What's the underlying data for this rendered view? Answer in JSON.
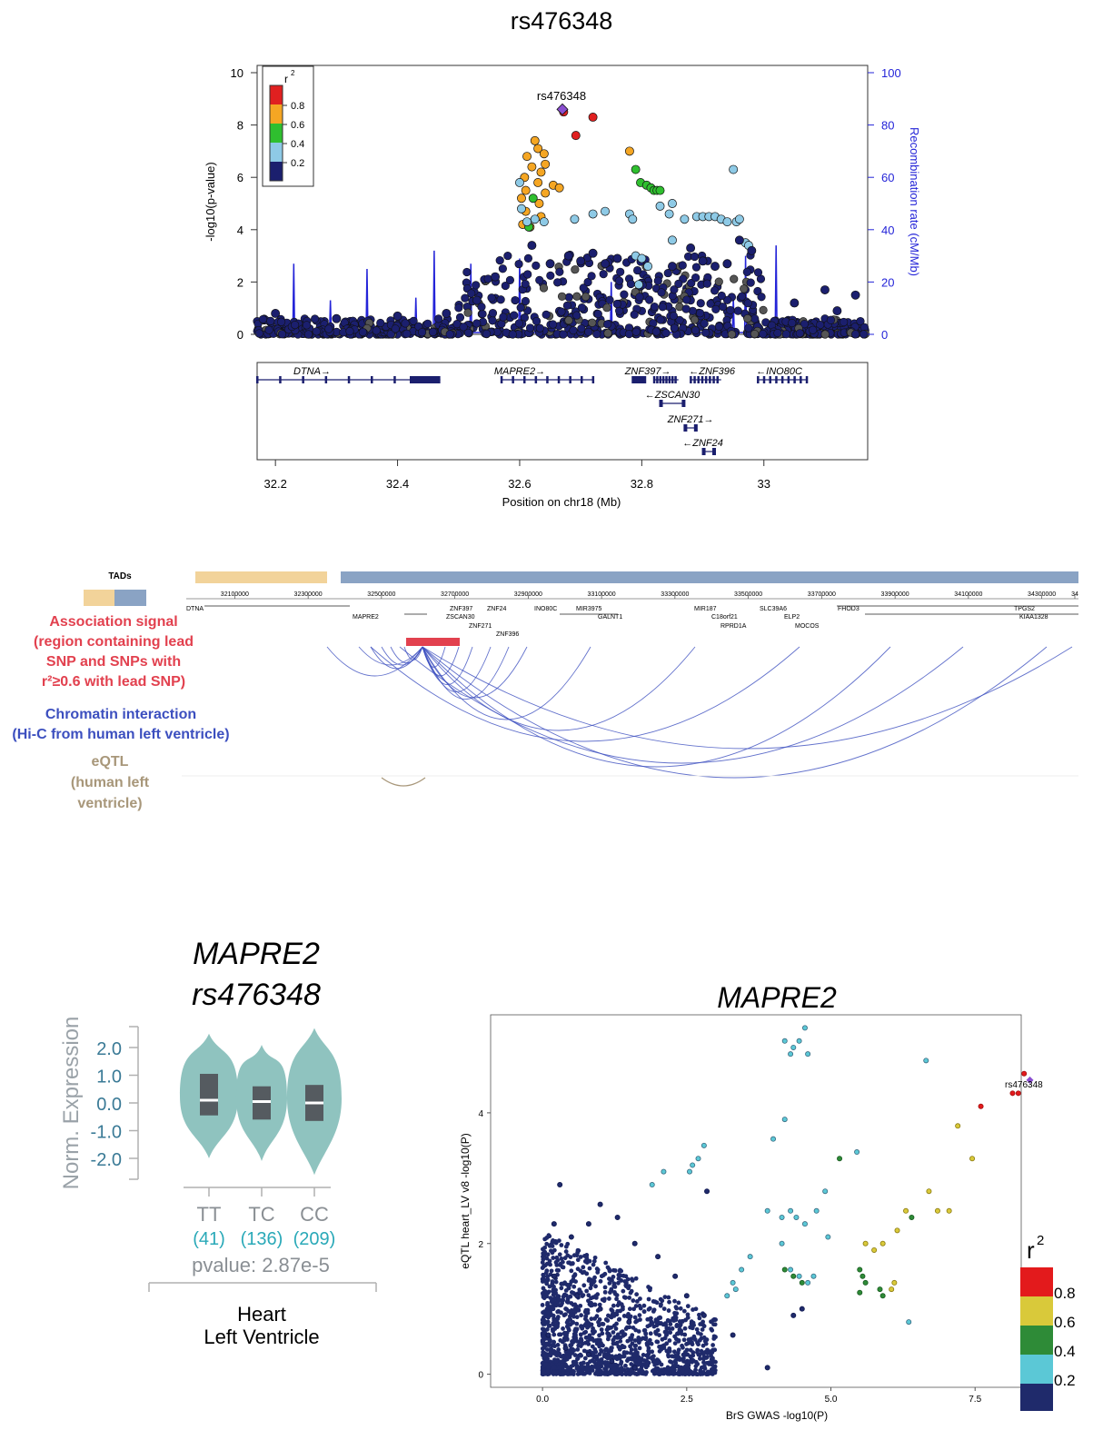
{
  "colors": {
    "navy": "#1b1f6e",
    "light_blue": "#8ecae6",
    "green": "#2fbf2f",
    "orange": "#f5a623",
    "red": "#e02020",
    "purple": "#8a4fd0",
    "recomb_blue": "#2424d8",
    "tad_tan": "#f2d39a",
    "tad_blue": "#8aa3c4",
    "assoc_red": "#e2414f",
    "chromatin_blue": "#3c4fbf",
    "eqtl_tan": "#a8977a",
    "violin_teal": "#8fc3bf",
    "r2_red": "#e31a1c",
    "r2_yellow": "#d9c93a",
    "r2_green": "#2e8b37",
    "r2_cyan": "#5bc8d6",
    "r2_navy": "#1f2a6b"
  },
  "chart_data": [
    {
      "type": "scatter",
      "title": "rs476348",
      "xlabel": "Position on chr18 (Mb)",
      "ylabel": "-log10(p-value)",
      "ylabel_right": "Recombination rate (cM/Mb)",
      "xlim": [
        32.17,
        33.17
      ],
      "ylim": [
        0,
        10
      ],
      "ylim_right": [
        0,
        100
      ],
      "x_ticks": [
        "32.2",
        "32.4",
        "32.6",
        "32.8",
        "33"
      ],
      "y_ticks": [
        "0",
        "2",
        "4",
        "6",
        "8",
        "10"
      ],
      "y_ticks_right": [
        "0",
        "20",
        "40",
        "60",
        "80",
        "100"
      ],
      "legend": {
        "title": "r",
        "title_sup": "2",
        "entries": [
          "0.8",
          "0.6",
          "0.4",
          "0.2"
        ],
        "position": "top-left"
      },
      "lead_snp": {
        "label": "rs476348",
        "x": 32.67,
        "y": 8.6
      },
      "series": [
        {
          "name": "0.8-1.0",
          "points": [
            [
              32.672,
              8.5
            ],
            [
              32.72,
              8.3
            ],
            [
              32.692,
              7.6
            ]
          ]
        },
        {
          "name": "0.6-0.8",
          "points": [
            [
              32.625,
              7.4
            ],
            [
              32.63,
              7.1
            ],
            [
              32.64,
              6.9
            ],
            [
              32.612,
              6.8
            ],
            [
              32.642,
              6.5
            ],
            [
              32.62,
              6.4
            ],
            [
              32.635,
              6.2
            ],
            [
              32.608,
              6.0
            ],
            [
              32.63,
              5.8
            ],
            [
              32.655,
              5.7
            ],
            [
              32.61,
              5.5
            ],
            [
              32.642,
              5.4
            ],
            [
              32.603,
              5.2
            ],
            [
              32.632,
              5.0
            ],
            [
              32.61,
              4.7
            ],
            [
              32.635,
              4.5
            ],
            [
              32.605,
              4.2
            ],
            [
              32.617,
              4.1
            ],
            [
              32.665,
              5.6
            ],
            [
              32.78,
              7.0
            ]
          ]
        },
        {
          "name": "0.4-0.6",
          "points": [
            [
              32.622,
              5.2
            ],
            [
              32.79,
              6.3
            ],
            [
              32.798,
              5.8
            ],
            [
              32.808,
              5.7
            ],
            [
              32.815,
              5.6
            ],
            [
              32.82,
              5.5
            ],
            [
              32.825,
              5.5
            ],
            [
              32.83,
              5.5
            ],
            [
              32.615,
              4.1
            ]
          ]
        },
        {
          "name": "0.2-0.4",
          "points": [
            [
              32.6,
              5.8
            ],
            [
              32.603,
              4.8
            ],
            [
              32.612,
              4.3
            ],
            [
              32.625,
              4.4
            ],
            [
              32.64,
              4.3
            ],
            [
              32.69,
              4.4
            ],
            [
              32.72,
              4.6
            ],
            [
              32.74,
              4.7
            ],
            [
              32.78,
              4.6
            ],
            [
              32.785,
              4.4
            ],
            [
              32.83,
              4.9
            ],
            [
              32.845,
              4.6
            ],
            [
              32.85,
              5.0
            ],
            [
              32.87,
              4.4
            ],
            [
              32.89,
              4.5
            ],
            [
              32.9,
              4.5
            ],
            [
              32.91,
              4.5
            ],
            [
              32.92,
              4.5
            ],
            [
              32.93,
              4.4
            ],
            [
              32.94,
              4.3
            ],
            [
              32.95,
              6.3
            ],
            [
              32.955,
              4.3
            ],
            [
              32.96,
              4.4
            ],
            [
              32.97,
              3.5
            ],
            [
              32.975,
              3.4
            ],
            [
              32.85,
              3.6
            ],
            [
              32.79,
              3.0
            ],
            [
              32.8,
              2.9
            ],
            [
              32.81,
              2.6
            ],
            [
              32.795,
              1.9
            ]
          ]
        },
        {
          "name": "0.0-0.2",
          "points": [
            [
              32.62,
              3.4
            ],
            [
              32.65,
              2.7
            ],
            [
              32.68,
              3.0
            ],
            [
              32.7,
              2.8
            ],
            [
              32.72,
              3.1
            ],
            [
              32.74,
              2.7
            ],
            [
              32.76,
              2.9
            ],
            [
              32.85,
              2.6
            ],
            [
              32.88,
              3.3
            ],
            [
              32.9,
              2.8
            ],
            [
              32.92,
              2.6
            ],
            [
              32.94,
              2.7
            ],
            [
              32.96,
              3.6
            ],
            [
              32.98,
              3.2
            ],
            [
              32.56,
              2.2
            ],
            [
              32.53,
              1.3
            ],
            [
              32.48,
              0.8
            ],
            [
              32.4,
              0.7
            ],
            [
              32.3,
              0.6
            ],
            [
              32.2,
              0.8
            ],
            [
              33.1,
              1.7
            ],
            [
              33.05,
              1.2
            ],
            [
              33.12,
              0.9
            ],
            [
              33.15,
              1.5
            ]
          ]
        }
      ]
    },
    {
      "type": "violin",
      "title": "MAPRE2",
      "subtitle": "rs476348",
      "ylabel": "Norm. Expression",
      "y_ticks": [
        "2.0",
        "1.0",
        "0.0",
        "-1.0",
        "-2.0"
      ],
      "ylim": [
        -2.8,
        2.8
      ],
      "categories": [
        "TT",
        "TC",
        "CC"
      ],
      "counts": [
        "(41)",
        "(136)",
        "(209)"
      ],
      "medians": [
        0.1,
        0.05,
        0.0
      ],
      "q1": [
        -0.45,
        -0.6,
        -0.65
      ],
      "q3": [
        1.05,
        0.6,
        0.65
      ],
      "mins": [
        -2.0,
        -2.1,
        -2.6
      ],
      "maxs": [
        2.5,
        2.1,
        2.7
      ],
      "pvalue": "pvalue: 2.87e-5",
      "tissue": [
        "Heart",
        "Left Ventricle"
      ]
    },
    {
      "type": "scatter",
      "title": "MAPRE2",
      "xlabel": "BrS GWAS  -log10(P)",
      "ylabel": "eQTL heart_LV v8  -log10(P)",
      "xlim": [
        -0.9,
        8.3
      ],
      "ylim": [
        -0.2,
        5.5
      ],
      "x_ticks": [
        "0.0",
        "2.5",
        "5.0",
        "7.5"
      ],
      "y_ticks": [
        "0",
        "2",
        "4"
      ],
      "lead_snp": {
        "label": "rs476348",
        "x": 8.45,
        "y": 4.5
      },
      "legend": {
        "title": "r",
        "title_sup": "2",
        "entries": [
          "0.8",
          "0.6",
          "0.4",
          "0.2"
        ],
        "position": "bottom-right"
      },
      "series": [
        {
          "name": "0.8-1.0",
          "points": [
            [
              8.15,
              4.3
            ],
            [
              8.25,
              4.3
            ],
            [
              7.6,
              4.1
            ],
            [
              8.35,
              4.6
            ]
          ]
        },
        {
          "name": "0.6-0.8",
          "points": [
            [
              7.2,
              3.8
            ],
            [
              7.45,
              3.3
            ],
            [
              6.7,
              2.8
            ],
            [
              6.85,
              2.5
            ],
            [
              7.05,
              2.5
            ],
            [
              6.3,
              2.5
            ],
            [
              6.15,
              2.2
            ],
            [
              5.6,
              2.0
            ],
            [
              5.75,
              1.9
            ],
            [
              5.9,
              2.0
            ],
            [
              6.1,
              1.4
            ],
            [
              6.05,
              1.3
            ]
          ]
        },
        {
          "name": "0.4-0.6",
          "points": [
            [
              5.15,
              3.3
            ],
            [
              6.4,
              2.4
            ],
            [
              5.5,
              1.6
            ],
            [
              5.55,
              1.5
            ],
            [
              5.6,
              1.4
            ],
            [
              5.85,
              1.3
            ],
            [
              5.5,
              1.25
            ],
            [
              5.9,
              1.2
            ],
            [
              4.2,
              1.6
            ],
            [
              4.5,
              1.4
            ],
            [
              4.35,
              1.5
            ]
          ]
        },
        {
          "name": "0.2-0.4",
          "points": [
            [
              4.55,
              5.3
            ],
            [
              4.35,
              5.0
            ],
            [
              4.45,
              5.1
            ],
            [
              4.6,
              4.9
            ],
            [
              4.3,
              4.9
            ],
            [
              4.2,
              5.1
            ],
            [
              6.65,
              4.8
            ],
            [
              4.2,
              3.9
            ],
            [
              4.0,
              3.6
            ],
            [
              3.9,
              2.5
            ],
            [
              2.8,
              3.5
            ],
            [
              2.7,
              3.3
            ],
            [
              2.6,
              3.2
            ],
            [
              2.55,
              3.1
            ],
            [
              2.1,
              3.1
            ],
            [
              1.9,
              2.9
            ],
            [
              5.45,
              3.4
            ],
            [
              4.9,
              2.8
            ],
            [
              4.75,
              2.5
            ],
            [
              4.95,
              2.1
            ],
            [
              4.55,
              2.3
            ],
            [
              4.4,
              2.4
            ],
            [
              4.3,
              2.5
            ],
            [
              4.15,
              2.4
            ],
            [
              4.15,
              2.0
            ],
            [
              4.3,
              1.6
            ],
            [
              4.45,
              1.5
            ],
            [
              4.6,
              1.4
            ],
            [
              4.7,
              1.5
            ],
            [
              3.45,
              1.6
            ],
            [
              3.3,
              1.4
            ],
            [
              3.35,
              1.3
            ],
            [
              3.2,
              1.2
            ],
            [
              3.6,
              1.8
            ],
            [
              6.35,
              0.8
            ]
          ]
        },
        {
          "name": "0.0-0.2",
          "points": [
            [
              0.3,
              2.9
            ],
            [
              0.2,
              2.3
            ],
            [
              0.5,
              2.1
            ],
            [
              0.8,
              2.3
            ],
            [
              1.0,
              2.6
            ],
            [
              1.3,
              2.4
            ],
            [
              1.6,
              2.0
            ],
            [
              2.0,
              1.8
            ],
            [
              2.3,
              1.5
            ],
            [
              2.5,
              1.2
            ],
            [
              2.8,
              0.9
            ],
            [
              3.3,
              0.6
            ],
            [
              3.9,
              0.1
            ],
            [
              4.5,
              1.0
            ],
            [
              4.35,
              0.9
            ],
            [
              2.85,
              2.8
            ],
            [
              0.1,
              0.6
            ],
            [
              0.4,
              0.4
            ],
            [
              0.8,
              0.3
            ],
            [
              1.2,
              0.2
            ],
            [
              1.6,
              0.1
            ],
            [
              0.6,
              1.2
            ],
            [
              1.0,
              1.0
            ],
            [
              1.5,
              0.8
            ],
            [
              0.2,
              1.5
            ]
          ]
        }
      ]
    }
  ],
  "gene_track_1": {
    "genes": [
      {
        "label": "DTNA→",
        "x": 32.26,
        "row": 0
      },
      {
        "label": "MAPRE2→",
        "x": 32.6,
        "row": 0
      },
      {
        "label": "ZNF397→",
        "x": 32.81,
        "row": 0
      },
      {
        "label": "←ZNF396",
        "x": 32.915,
        "row": 0
      },
      {
        "label": "←INO80C",
        "x": 33.025,
        "row": 0
      },
      {
        "label": "←ZSCAN30",
        "x": 32.85,
        "row": 1
      },
      {
        "label": "ZNF271→",
        "x": 32.88,
        "row": 2
      },
      {
        "label": "←ZNF24",
        "x": 32.9,
        "row": 3
      }
    ]
  },
  "hic_panel": {
    "tads_label": "TADs",
    "coord_ticks": [
      "32100000",
      "32300000",
      "32500000",
      "32700000",
      "32900000",
      "33100000",
      "33300000",
      "33500000",
      "33700000",
      "33900000",
      "34100000",
      "34300000",
      "34"
    ],
    "genes_row1": [
      "DTNA",
      "ZNF397",
      "ZNF24",
      "INO80C",
      "MIR3975",
      "MIR187",
      "SLC39A6",
      "FHOD3",
      "TPGS2"
    ],
    "genes_row2": [
      "MAPRE2",
      "ZSCAN30",
      "GALNT1",
      "C18orf21",
      "ELP2",
      "KIAA1328"
    ],
    "genes_row3": [
      "ZNF271",
      "RPRD1A",
      "MOCOS"
    ],
    "genes_row4": [
      "ZNF396"
    ],
    "assoc_label": [
      "Association signal",
      "(region containing lead",
      "SNP and SNPs  with",
      "r²≥0.6 with lead SNP)"
    ],
    "chromatin_label": [
      "Chromatin interaction",
      "(Hi-C from human left ventricle)"
    ],
    "eqtl_label": [
      "eQTL",
      "(human left",
      "ventricle)"
    ]
  }
}
